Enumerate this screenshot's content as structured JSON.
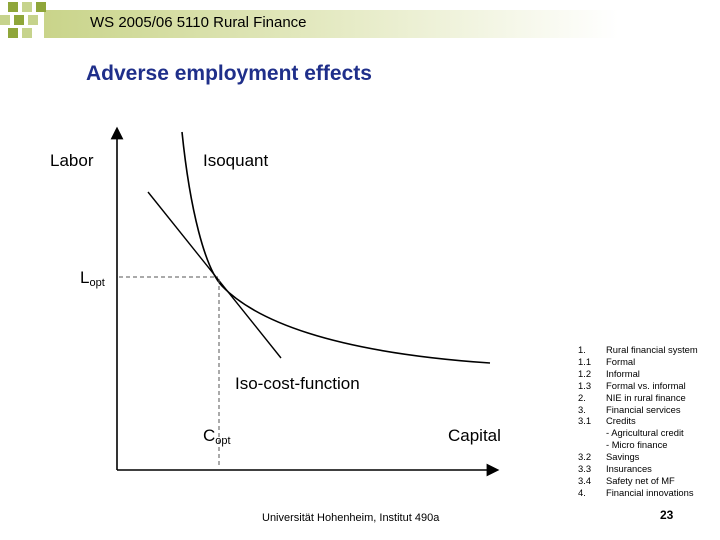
{
  "header": {
    "title": "WS 2005/06 5110 Rural Finance"
  },
  "slide": {
    "title": "Adverse employment effects"
  },
  "diagram": {
    "y_axis_label": "Labor",
    "x_axis_label": "Capital",
    "isoquant_label": "Isoquant",
    "iso_cost_label": "Iso-cost-function",
    "l_opt": {
      "main": "L",
      "sub": "opt"
    },
    "c_opt": {
      "main": "C",
      "sub": "opt"
    }
  },
  "toc": [
    {
      "num": "1.",
      "text": "Rural financial system"
    },
    {
      "num": "1.1",
      "text": "Formal"
    },
    {
      "num": "1.2",
      "text": "Informal"
    },
    {
      "num": "1.3",
      "text": "Formal vs. informal"
    },
    {
      "num": "2.",
      "text": "NIE in rural finance"
    },
    {
      "num": "3.",
      "text": "Financial services"
    },
    {
      "num": "3.1",
      "text": "Credits"
    },
    {
      "num": "",
      "text": "- Agricultural credit"
    },
    {
      "num": "",
      "text": "- Micro finance"
    },
    {
      "num": "3.2",
      "text": "Savings"
    },
    {
      "num": "3.3",
      "text": "Insurances"
    },
    {
      "num": "3.4",
      "text": "Safety net of MF"
    },
    {
      "num": "4.",
      "text": "Financial innovations"
    }
  ],
  "footer": {
    "institution": "Universität Hohenheim, Institut 490a",
    "page": "23"
  },
  "colors": {
    "title": "#1f2f8a",
    "header_bar": "#c9d48a",
    "deco_green": "#8fa63a"
  }
}
